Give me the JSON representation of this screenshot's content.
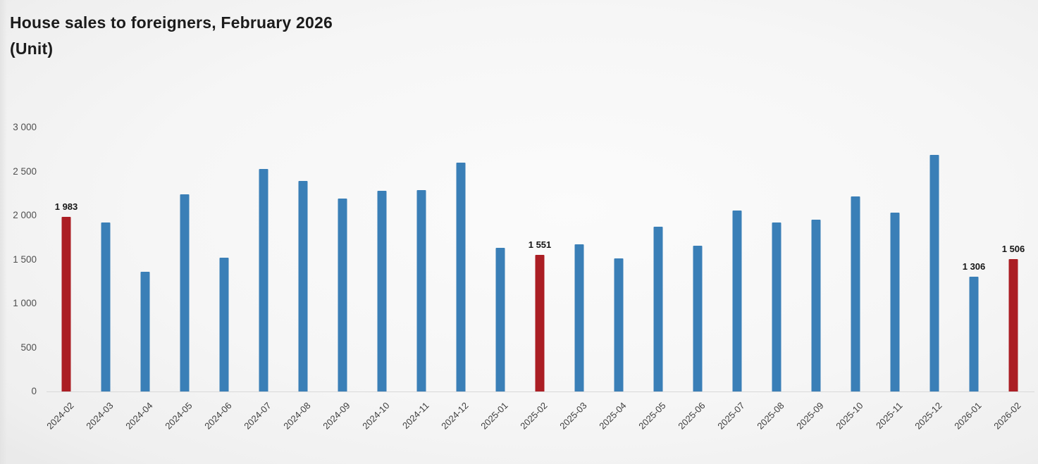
{
  "title": "House sales to foreigners, February 2026",
  "subtitle": "(Unit)",
  "chart_data": {
    "type": "bar",
    "title": "House sales to foreigners, February 2026",
    "ylabel_unit": "(Unit)",
    "xlabel": "",
    "ylabel": "",
    "ylim": [
      0,
      3000
    ],
    "grid": false,
    "legend": false,
    "categories": [
      "2024-02",
      "2024-03",
      "2024-04",
      "2024-05",
      "2024-06",
      "2024-07",
      "2024-08",
      "2024-09",
      "2024-10",
      "2024-11",
      "2024-12",
      "2025-01",
      "2025-02",
      "2025-03",
      "2025-04",
      "2025-05",
      "2025-06",
      "2025-07",
      "2025-08",
      "2025-09",
      "2025-10",
      "2025-11",
      "2025-12",
      "2026-01",
      "2026-02"
    ],
    "values": [
      1983,
      1920,
      1360,
      2240,
      1520,
      2530,
      2390,
      2190,
      2280,
      2290,
      2600,
      1630,
      1551,
      1670,
      1510,
      1870,
      1660,
      2060,
      1920,
      1950,
      2220,
      2030,
      2690,
      1306,
      1506
    ],
    "highlight_indices": [
      0,
      12,
      24
    ],
    "value_labels": [
      {
        "index": 0,
        "text": "1 983"
      },
      {
        "index": 12,
        "text": "1 551"
      },
      {
        "index": 23,
        "text": "1 306"
      },
      {
        "index": 24,
        "text": "1 506"
      }
    ],
    "y_ticks": [
      {
        "value": 0,
        "label": "0"
      },
      {
        "value": 500,
        "label": "500"
      },
      {
        "value": 1000,
        "label": "1 000"
      },
      {
        "value": 1500,
        "label": "1 500"
      },
      {
        "value": 2000,
        "label": "2 000"
      },
      {
        "value": 2500,
        "label": "2 500"
      },
      {
        "value": 3000,
        "label": "3 000"
      }
    ]
  },
  "colors": {
    "bar_default": "#3a7fb7",
    "bar_highlight": "#ab1e24",
    "axis_line": "#d9d9d9",
    "y_tick_text": "#4f4f4f",
    "x_tick_text": "#3d3d3d",
    "value_label_text": "#151515",
    "title_text": "#1b1b1b",
    "background": "#f3f3f3"
  }
}
